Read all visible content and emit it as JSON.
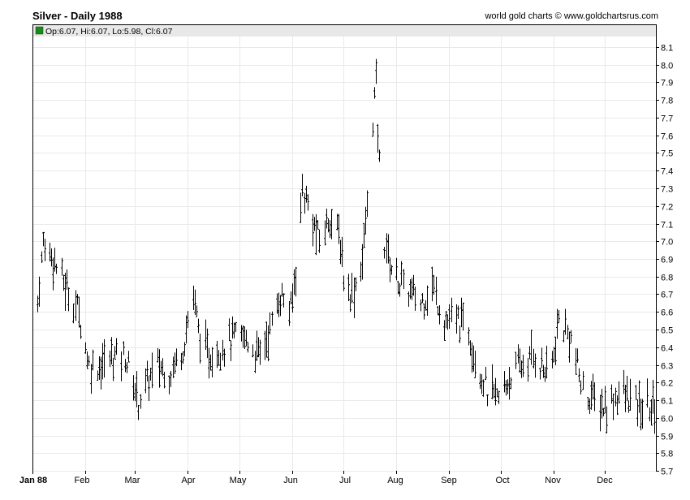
{
  "header": {
    "title": "Silver - Daily 1988",
    "credit": "world gold charts © www.goldchartsrus.com",
    "ohlc_label": "Op:6.07, Hi:6.07, Lo:5.98, Cl:6.07"
  },
  "colors": {
    "bar": "#000000",
    "grid": "#e9e9e9",
    "legend_swatch": "#1a8a1a",
    "legend_bg": "#e8e8e8"
  },
  "chart_data": {
    "type": "ohlc",
    "title": "Silver - Daily 1988",
    "ylim": [
      5.7,
      8.15
    ],
    "y_ticks": [
      "8.1",
      "8.0",
      "7.9",
      "7.8",
      "7.7",
      "7.6",
      "7.5",
      "7.4",
      "7.3",
      "7.2",
      "7.1",
      "7.0",
      "6.9",
      "6.8",
      "6.7",
      "6.6",
      "6.5",
      "6.4",
      "6.3",
      "6.2",
      "6.1",
      "6.0",
      "5.9",
      "5.8",
      "5.7"
    ],
    "x_labels": [
      "Jan 88",
      "Feb",
      "Mar",
      "Apr",
      "May",
      "Jun",
      "Jul",
      "Aug",
      "Sep",
      "Oct",
      "Nov",
      "Dec"
    ],
    "x_domain": [
      "1988-01-01",
      "1988-12-31"
    ],
    "grid": true,
    "legend_position": "top-left",
    "anchors": [
      [
        "1988-01-04",
        6.65
      ],
      [
        "1988-01-07",
        7.0
      ],
      [
        "1988-01-13",
        6.9
      ],
      [
        "1988-01-20",
        6.75
      ],
      [
        "1988-01-28",
        6.6
      ],
      [
        "1988-02-03",
        6.3
      ],
      [
        "1988-02-10",
        6.3
      ],
      [
        "1988-02-17",
        6.35
      ],
      [
        "1988-02-24",
        6.35
      ],
      [
        "1988-03-03",
        6.1
      ],
      [
        "1988-03-08",
        6.2
      ],
      [
        "1988-03-14",
        6.3
      ],
      [
        "1988-03-21",
        6.25
      ],
      [
        "1988-03-29",
        6.4
      ],
      [
        "1988-04-04",
        6.7
      ],
      [
        "1988-04-07",
        6.5
      ],
      [
        "1988-04-12",
        6.35
      ],
      [
        "1988-04-20",
        6.4
      ],
      [
        "1988-04-28",
        6.45
      ],
      [
        "1988-05-05",
        6.45
      ],
      [
        "1988-05-12",
        6.35
      ],
      [
        "1988-05-19",
        6.5
      ],
      [
        "1988-05-25",
        6.7
      ],
      [
        "1988-05-31",
        6.6
      ],
      [
        "1988-06-03",
        6.85
      ],
      [
        "1988-06-07",
        7.3
      ],
      [
        "1988-06-13",
        7.1
      ],
      [
        "1988-06-17",
        7.0
      ],
      [
        "1988-06-23",
        7.15
      ],
      [
        "1988-06-29",
        7.0
      ],
      [
        "1988-07-01",
        6.8
      ],
      [
        "1988-07-06",
        6.7
      ],
      [
        "1988-07-12",
        6.9
      ],
      [
        "1988-07-15",
        7.2
      ],
      [
        "1988-07-18",
        7.7
      ],
      [
        "1988-07-20",
        7.9
      ],
      [
        "1988-07-21",
        7.6
      ],
      [
        "1988-07-25",
        7.0
      ],
      [
        "1988-07-29",
        6.85
      ],
      [
        "1988-08-04",
        6.75
      ],
      [
        "1988-08-10",
        6.7
      ],
      [
        "1988-08-15",
        6.65
      ],
      [
        "1988-08-22",
        6.75
      ],
      [
        "1988-08-29",
        6.55
      ],
      [
        "1988-09-06",
        6.55
      ],
      [
        "1988-09-12",
        6.5
      ],
      [
        "1988-09-16",
        6.35
      ],
      [
        "1988-09-23",
        6.15
      ],
      [
        "1988-09-30",
        6.1
      ],
      [
        "1988-10-07",
        6.25
      ],
      [
        "1988-10-14",
        6.3
      ],
      [
        "1988-10-21",
        6.35
      ],
      [
        "1988-10-28",
        6.25
      ],
      [
        "1988-11-01",
        6.35
      ],
      [
        "1988-11-04",
        6.55
      ],
      [
        "1988-11-11",
        6.45
      ],
      [
        "1988-11-18",
        6.15
      ],
      [
        "1988-11-25",
        6.1
      ],
      [
        "1988-12-02",
        6.05
      ],
      [
        "1988-12-09",
        6.15
      ],
      [
        "1988-12-16",
        6.1
      ],
      [
        "1988-12-22",
        6.05
      ],
      [
        "1988-12-30",
        6.07
      ]
    ],
    "spread_dollars": 0.12
  }
}
